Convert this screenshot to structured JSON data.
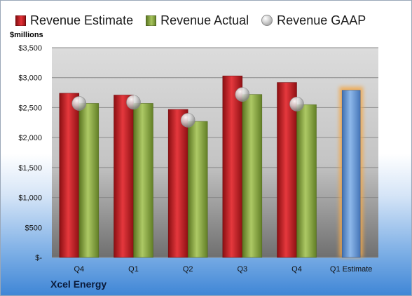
{
  "legend": {
    "estimate": "Revenue Estimate",
    "actual": "Revenue Actual",
    "gaap": "Revenue GAAP"
  },
  "units_label": "$millions",
  "company": "Xcel Energy",
  "colors": {
    "estimate": "#d62a30",
    "actual": "#8fae47",
    "gaap": "#c8c8c8",
    "forecast": "#6f9fd8",
    "forecast_glow": "#f3a84a"
  },
  "chart_data": {
    "type": "bar",
    "categories": [
      "Q4",
      "Q1",
      "Q2",
      "Q3",
      "Q4",
      "Q1 Estimate"
    ],
    "yticks": [
      "$3,500",
      "$3,000",
      "$2,500",
      "$2,000",
      "$1,500",
      "$1,000",
      "$500",
      "$-"
    ],
    "ylim": [
      0,
      3500
    ],
    "series": [
      {
        "name": "Revenue Estimate",
        "values": [
          2740,
          2710,
          2470,
          3030,
          2920,
          null
        ]
      },
      {
        "name": "Revenue Actual",
        "values": [
          2570,
          2570,
          2270,
          2720,
          2550,
          null
        ]
      },
      {
        "name": "Revenue GAAP",
        "values": [
          2570,
          2590,
          2290,
          2720,
          2560,
          null
        ]
      }
    ],
    "forecast": {
      "category": "Q1 Estimate",
      "value": 2790
    },
    "grid": true
  }
}
